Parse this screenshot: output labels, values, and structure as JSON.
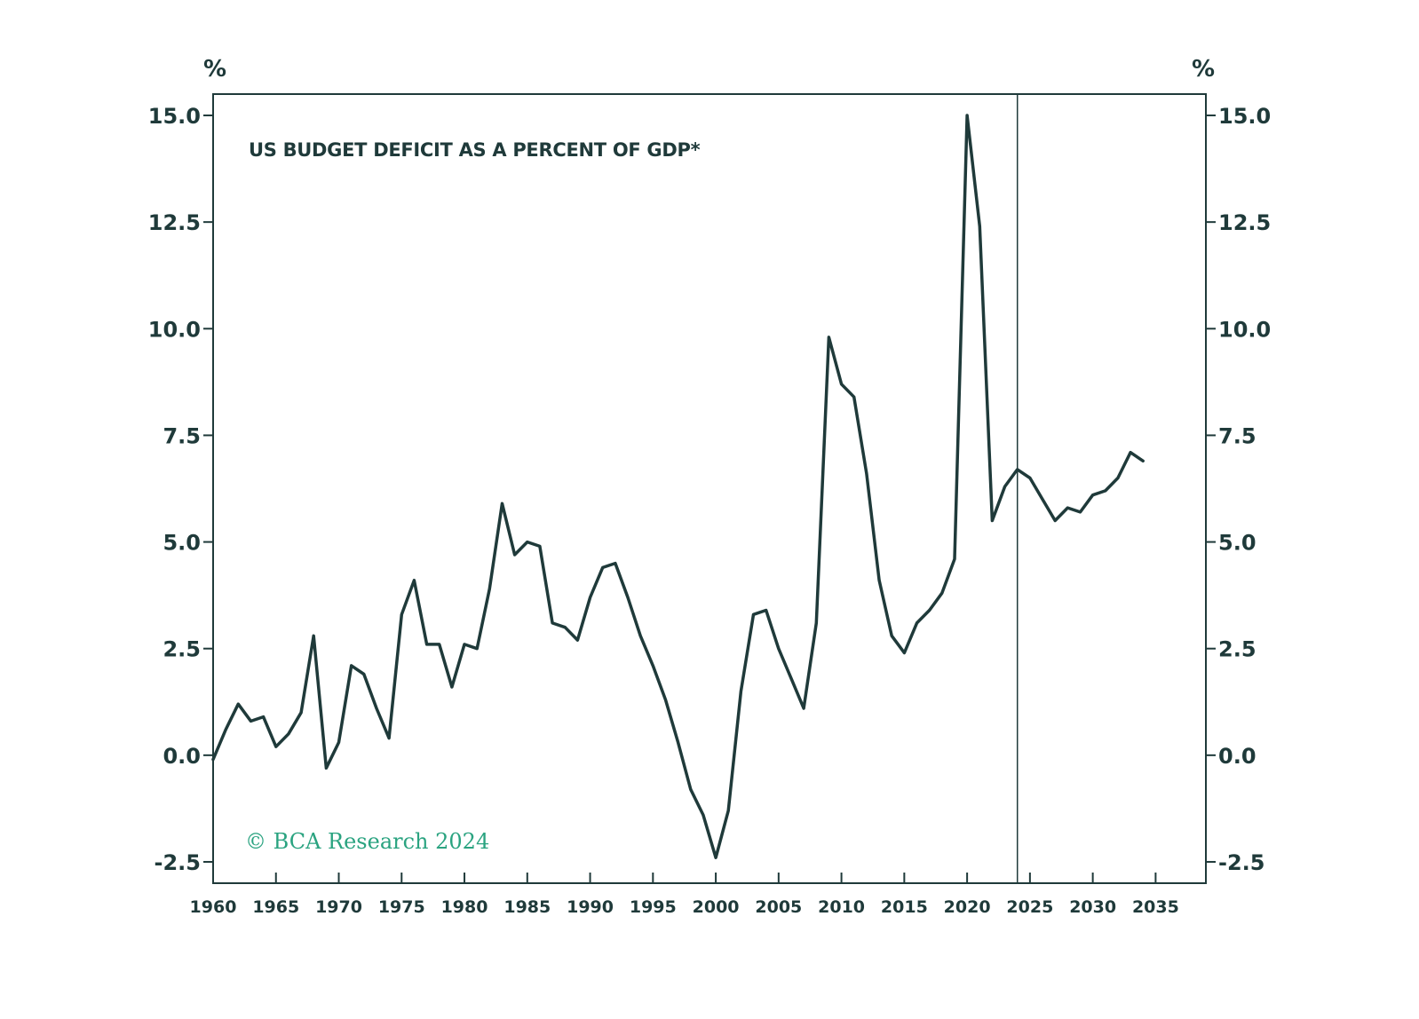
{
  "chart_data": {
    "type": "line",
    "title": "US BUDGET DEFICIT AS A PERCENT OF GDP*",
    "credit": "© BCA Research 2024",
    "y_unit_left": "%",
    "y_unit_right": "%",
    "ylim": [
      -3.0,
      15.5
    ],
    "y_ticks": [
      {
        "value": 15.0,
        "label": "15.0"
      },
      {
        "value": 12.5,
        "label": "12.5"
      },
      {
        "value": 10.0,
        "label": "10.0"
      },
      {
        "value": 7.5,
        "label": "7.5"
      },
      {
        "value": 5.0,
        "label": "5.0"
      },
      {
        "value": 2.5,
        "label": "2.5"
      },
      {
        "value": 0.0,
        "label": "0.0"
      },
      {
        "value": -2.5,
        "label": "-2.5"
      }
    ],
    "xlim": [
      1960,
      2039
    ],
    "x_ticks": [
      {
        "value": 1960,
        "label": "1960"
      },
      {
        "value": 1965,
        "label": "1965"
      },
      {
        "value": 1970,
        "label": "1970"
      },
      {
        "value": 1975,
        "label": "1975"
      },
      {
        "value": 1980,
        "label": "1980"
      },
      {
        "value": 1985,
        "label": "1985"
      },
      {
        "value": 1990,
        "label": "1990"
      },
      {
        "value": 1995,
        "label": "1995"
      },
      {
        "value": 2000,
        "label": "2000"
      },
      {
        "value": 2005,
        "label": "2005"
      },
      {
        "value": 2010,
        "label": "2010"
      },
      {
        "value": 2015,
        "label": "2015"
      },
      {
        "value": 2020,
        "label": "2020"
      },
      {
        "value": 2025,
        "label": "2025"
      },
      {
        "value": 2030,
        "label": "2030"
      },
      {
        "value": 2035,
        "label": "2035"
      }
    ],
    "forecast_start": 2024,
    "colors": {
      "line": "#1f3a3a",
      "frame": "#1f3a3a",
      "credit": "#2aa380"
    },
    "series": [
      {
        "name": "US budget deficit (% of GDP)",
        "x": [
          1960,
          1961,
          1962,
          1963,
          1964,
          1965,
          1966,
          1967,
          1968,
          1969,
          1970,
          1971,
          1972,
          1973,
          1974,
          1975,
          1976,
          1977,
          1978,
          1979,
          1980,
          1981,
          1982,
          1983,
          1984,
          1985,
          1986,
          1987,
          1988,
          1989,
          1990,
          1991,
          1992,
          1993,
          1994,
          1995,
          1996,
          1997,
          1998,
          1999,
          2000,
          2001,
          2002,
          2003,
          2004,
          2005,
          2006,
          2007,
          2008,
          2009,
          2010,
          2011,
          2012,
          2013,
          2014,
          2015,
          2016,
          2017,
          2018,
          2019,
          2020,
          2021,
          2022,
          2023,
          2024,
          2025,
          2026,
          2027,
          2028,
          2029,
          2030,
          2031,
          2032,
          2033,
          2034
        ],
        "values": [
          -0.1,
          0.6,
          1.2,
          0.8,
          0.9,
          0.2,
          0.5,
          1.0,
          2.8,
          -0.3,
          0.3,
          2.1,
          1.9,
          1.1,
          0.4,
          3.3,
          4.1,
          2.6,
          2.6,
          1.6,
          2.6,
          2.5,
          3.9,
          5.9,
          4.7,
          5.0,
          4.9,
          3.1,
          3.0,
          2.7,
          3.7,
          4.4,
          4.5,
          3.7,
          2.8,
          2.1,
          1.3,
          0.3,
          -0.8,
          -1.4,
          -2.4,
          -1.3,
          1.5,
          3.3,
          3.4,
          2.5,
          1.8,
          1.1,
          3.1,
          9.8,
          8.7,
          8.4,
          6.6,
          4.1,
          2.8,
          2.4,
          3.1,
          3.4,
          3.8,
          4.6,
          15.0,
          12.4,
          5.5,
          6.3,
          6.7,
          6.5,
          6.0,
          5.5,
          5.8,
          5.7,
          6.1,
          6.2,
          6.5,
          7.1,
          6.9
        ]
      }
    ]
  }
}
